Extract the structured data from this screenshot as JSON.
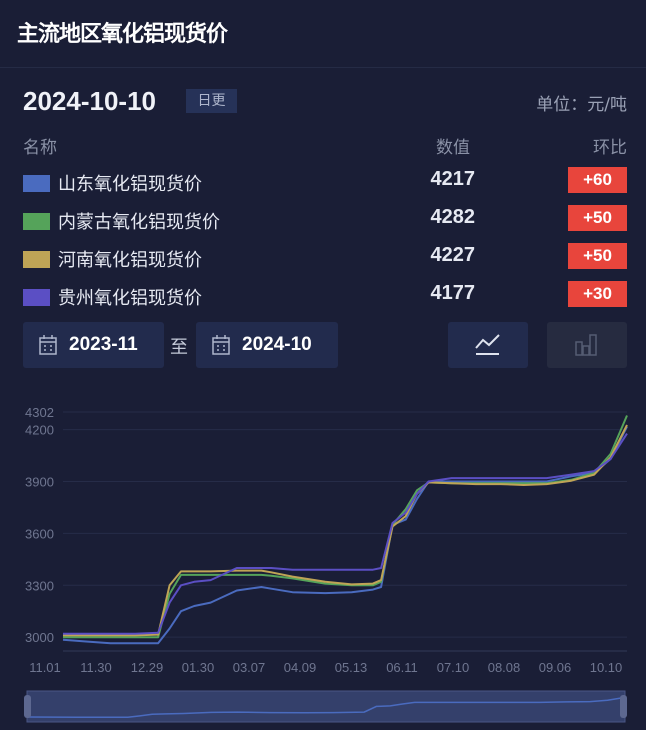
{
  "header": {
    "title": "主流地区氧化铝现货价"
  },
  "info": {
    "date": "2024-10-10",
    "frequency_badge": "日更",
    "unit": "单位：元/吨"
  },
  "table": {
    "columns": [
      "名称",
      "数值",
      "环比"
    ],
    "rows": [
      {
        "name": "山东氧化铝现货价",
        "value": "4217",
        "change": "+60",
        "color": "#4a6bbf"
      },
      {
        "name": "内蒙古氧化铝现货价",
        "value": "4282",
        "change": "+50",
        "color": "#55a35a"
      },
      {
        "name": "河南氧化铝现货价",
        "value": "4227",
        "change": "+50",
        "color": "#bfa456"
      },
      {
        "name": "贵州氧化铝现货价",
        "value": "4177",
        "change": "+30",
        "color": "#5b4fc4"
      }
    ]
  },
  "range": {
    "start": "2023-11",
    "separator": "至",
    "end": "2024-10",
    "line_view_active": true
  },
  "chart_data": {
    "type": "line",
    "ylim": [
      2920,
      4302
    ],
    "yticks": [
      3000,
      3300,
      3600,
      3900,
      4200,
      4302
    ],
    "xticks": [
      "11.01",
      "11.30",
      "12.29",
      "01.30",
      "03.07",
      "04.09",
      "05.13",
      "06.11",
      "07.10",
      "08.08",
      "09.06",
      "10.10"
    ],
    "grid": true,
    "x": [
      "11.01",
      "11.15",
      "11.30",
      "12.15",
      "12.29",
      "01.05",
      "01.12",
      "01.20",
      "01.30",
      "02.15",
      "03.01",
      "03.07",
      "03.20",
      "04.09",
      "04.25",
      "05.08",
      "05.13",
      "05.20",
      "05.28",
      "06.04",
      "06.11",
      "06.25",
      "07.10",
      "07.25",
      "08.08",
      "08.22",
      "09.06",
      "09.20",
      "09.30",
      "10.10"
    ],
    "series": [
      {
        "name": "山东氧化铝现货价",
        "color": "#4a6bbf",
        "values": [
          2985,
          2975,
          2965,
          2965,
          2965,
          3050,
          3150,
          3180,
          3200,
          3270,
          3290,
          3280,
          3260,
          3255,
          3260,
          3275,
          3290,
          3650,
          3680,
          3800,
          3900,
          3900,
          3900,
          3900,
          3900,
          3900,
          3930,
          3950,
          4030,
          4217
        ]
      },
      {
        "name": "内蒙古氧化铝现货价",
        "color": "#55a35a",
        "values": [
          3000,
          3000,
          3000,
          3000,
          3000,
          3250,
          3360,
          3360,
          3360,
          3360,
          3360,
          3355,
          3340,
          3310,
          3300,
          3300,
          3320,
          3650,
          3740,
          3850,
          3895,
          3890,
          3890,
          3890,
          3890,
          3890,
          3910,
          3950,
          4060,
          4282
        ]
      },
      {
        "name": "河南氧化铝现货价",
        "color": "#bfa456",
        "values": [
          3010,
          3010,
          3010,
          3010,
          3015,
          3300,
          3380,
          3380,
          3380,
          3385,
          3385,
          3375,
          3350,
          3320,
          3305,
          3310,
          3330,
          3640,
          3700,
          3830,
          3895,
          3890,
          3885,
          3885,
          3880,
          3885,
          3905,
          3940,
          4040,
          4227
        ]
      },
      {
        "name": "贵州氧化铝现货价",
        "color": "#5b4fc4",
        "values": [
          3020,
          3020,
          3020,
          3020,
          3025,
          3200,
          3300,
          3320,
          3330,
          3400,
          3400,
          3400,
          3390,
          3390,
          3390,
          3390,
          3400,
          3660,
          3720,
          3830,
          3900,
          3920,
          3920,
          3920,
          3920,
          3920,
          3940,
          3960,
          4030,
          4177
        ]
      }
    ]
  }
}
